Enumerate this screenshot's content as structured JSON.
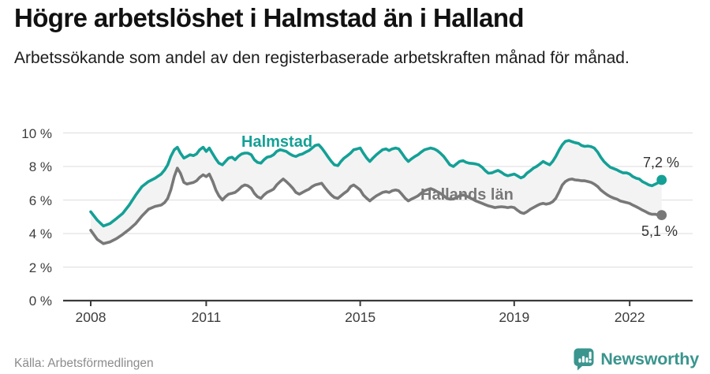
{
  "header": {
    "title": "Högre arbetslöshet i Halmstad än i Halland",
    "subtitle": "Arbetssökande som andel av den registerbaserade arbetskraften månad för månad."
  },
  "footer": {
    "source": "Källa: Arbetsförmedlingen",
    "brand": "Newsworthy"
  },
  "colors": {
    "halmstad": "#14A096",
    "halland": "#787878",
    "grid": "#DDDDDD",
    "axis": "#3A3A3A",
    "fill_between": "#F3F3F3",
    "logo": "#3A958E",
    "label_text": "#333333"
  },
  "chart_data": {
    "type": "line",
    "title": "Högre arbetslöshet i Halmstad än i Halland",
    "subtitle": "Arbetssökande som andel av den registerbaserade arbetskraften månad för månad.",
    "xlabel": "",
    "ylabel": "",
    "grid": true,
    "fill_between_series": true,
    "ylim": [
      0,
      10.6
    ],
    "xlim": [
      2007.3,
      2023.2
    ],
    "y_ticks": [
      {
        "v": 0,
        "label": "0 %"
      },
      {
        "v": 2,
        "label": "2 %"
      },
      {
        "v": 4,
        "label": "4 %"
      },
      {
        "v": 6,
        "label": "6 %"
      },
      {
        "v": 8,
        "label": "8 %"
      },
      {
        "v": 10,
        "label": "10 %"
      }
    ],
    "x_ticks": [
      {
        "v": 2008,
        "label": "2008"
      },
      {
        "v": 2011,
        "label": "2011"
      },
      {
        "v": 2015,
        "label": "2015"
      },
      {
        "v": 2019,
        "label": "2019"
      },
      {
        "v": 2022,
        "label": "2022"
      }
    ],
    "x": [
      2008.0,
      2008.17,
      2008.33,
      2008.5,
      2008.67,
      2008.83,
      2009.0,
      2009.17,
      2009.33,
      2009.5,
      2009.67,
      2009.83,
      2009.92,
      2010.0,
      2010.08,
      2010.17,
      2010.25,
      2010.33,
      2010.42,
      2010.5,
      2010.58,
      2010.67,
      2010.75,
      2010.83,
      2010.92,
      2011.0,
      2011.08,
      2011.17,
      2011.25,
      2011.33,
      2011.42,
      2011.5,
      2011.58,
      2011.67,
      2011.75,
      2011.83,
      2011.92,
      2012.0,
      2012.08,
      2012.17,
      2012.25,
      2012.33,
      2012.42,
      2012.5,
      2012.58,
      2012.67,
      2012.75,
      2012.83,
      2012.92,
      2013.0,
      2013.08,
      2013.17,
      2013.25,
      2013.33,
      2013.42,
      2013.5,
      2013.58,
      2013.67,
      2013.75,
      2013.83,
      2013.92,
      2014.0,
      2014.08,
      2014.17,
      2014.25,
      2014.33,
      2014.42,
      2014.5,
      2014.58,
      2014.67,
      2014.75,
      2014.83,
      2014.92,
      2015.0,
      2015.08,
      2015.17,
      2015.25,
      2015.33,
      2015.42,
      2015.5,
      2015.58,
      2015.67,
      2015.75,
      2015.83,
      2015.92,
      2016.0,
      2016.08,
      2016.17,
      2016.25,
      2016.33,
      2016.42,
      2016.5,
      2016.58,
      2016.67,
      2016.75,
      2016.83,
      2016.92,
      2017.0,
      2017.08,
      2017.17,
      2017.25,
      2017.33,
      2017.42,
      2017.5,
      2017.58,
      2017.67,
      2017.75,
      2017.83,
      2017.92,
      2018.0,
      2018.08,
      2018.17,
      2018.25,
      2018.33,
      2018.42,
      2018.5,
      2018.58,
      2018.67,
      2018.75,
      2018.83,
      2018.92,
      2019.0,
      2019.08,
      2019.17,
      2019.25,
      2019.33,
      2019.42,
      2019.5,
      2019.58,
      2019.67,
      2019.75,
      2019.83,
      2019.92,
      2020.0,
      2020.08,
      2020.17,
      2020.25,
      2020.33,
      2020.42,
      2020.5,
      2020.58,
      2020.67,
      2020.75,
      2020.83,
      2020.92,
      2021.0,
      2021.08,
      2021.17,
      2021.25,
      2021.33,
      2021.42,
      2021.5,
      2021.58,
      2021.67,
      2021.75,
      2021.83,
      2021.92,
      2022.0,
      2022.08,
      2022.17,
      2022.25,
      2022.33,
      2022.42,
      2022.5,
      2022.58,
      2022.67,
      2022.75,
      2022.83
    ],
    "series": [
      {
        "name": "Halmstad",
        "color": "#14A096",
        "end_label": "7,2 %",
        "end_value": 7.2,
        "values": [
          5.3,
          4.8,
          4.45,
          4.6,
          4.9,
          5.2,
          5.7,
          6.3,
          6.8,
          7.1,
          7.3,
          7.55,
          7.8,
          8.1,
          8.6,
          9.0,
          9.15,
          8.8,
          8.5,
          8.6,
          8.7,
          8.65,
          8.75,
          9.0,
          9.15,
          8.9,
          9.1,
          8.75,
          8.45,
          8.2,
          8.1,
          8.3,
          8.5,
          8.55,
          8.4,
          8.6,
          8.75,
          8.8,
          8.8,
          8.7,
          8.4,
          8.25,
          8.2,
          8.4,
          8.55,
          8.6,
          8.7,
          8.9,
          9.0,
          8.95,
          8.9,
          8.75,
          8.65,
          8.6,
          8.7,
          8.75,
          8.85,
          8.95,
          9.1,
          9.25,
          9.3,
          9.1,
          8.85,
          8.55,
          8.3,
          8.1,
          8.05,
          8.3,
          8.5,
          8.65,
          8.8,
          9.0,
          9.05,
          9.1,
          8.8,
          8.5,
          8.3,
          8.5,
          8.7,
          8.85,
          9.0,
          9.05,
          8.95,
          9.05,
          9.1,
          9.05,
          8.8,
          8.5,
          8.3,
          8.45,
          8.6,
          8.7,
          8.85,
          9.0,
          9.05,
          9.1,
          9.05,
          8.95,
          8.8,
          8.6,
          8.35,
          8.1,
          8.0,
          8.15,
          8.3,
          8.35,
          8.25,
          8.2,
          8.18,
          8.15,
          8.1,
          7.95,
          7.75,
          7.6,
          7.62,
          7.7,
          7.77,
          7.65,
          7.52,
          7.45,
          7.5,
          7.55,
          7.45,
          7.32,
          7.4,
          7.6,
          7.75,
          7.9,
          8.0,
          8.15,
          8.3,
          8.2,
          8.1,
          8.3,
          8.6,
          9.0,
          9.3,
          9.5,
          9.55,
          9.48,
          9.42,
          9.38,
          9.25,
          9.2,
          9.22,
          9.18,
          9.1,
          8.85,
          8.55,
          8.3,
          8.1,
          7.95,
          7.88,
          7.8,
          7.7,
          7.62,
          7.62,
          7.55,
          7.4,
          7.3,
          7.25,
          7.1,
          7.0,
          6.9,
          6.85,
          6.95,
          7.05,
          7.2
        ]
      },
      {
        "name": "Hallands län",
        "color": "#787878",
        "end_label": "5,1 %",
        "end_value": 5.1,
        "values": [
          4.2,
          3.65,
          3.4,
          3.5,
          3.7,
          3.95,
          4.25,
          4.6,
          5.05,
          5.45,
          5.62,
          5.7,
          5.85,
          6.1,
          6.6,
          7.4,
          7.9,
          7.6,
          7.05,
          6.95,
          7.0,
          7.05,
          7.15,
          7.35,
          7.5,
          7.4,
          7.55,
          7.1,
          6.6,
          6.25,
          6.0,
          6.2,
          6.35,
          6.4,
          6.45,
          6.6,
          6.8,
          6.9,
          6.85,
          6.7,
          6.4,
          6.2,
          6.1,
          6.3,
          6.45,
          6.55,
          6.65,
          6.9,
          7.1,
          7.25,
          7.1,
          6.9,
          6.7,
          6.45,
          6.35,
          6.45,
          6.55,
          6.65,
          6.8,
          6.9,
          6.95,
          7.0,
          6.75,
          6.5,
          6.3,
          6.15,
          6.1,
          6.25,
          6.4,
          6.55,
          6.8,
          6.9,
          6.75,
          6.6,
          6.3,
          6.1,
          5.95,
          6.1,
          6.25,
          6.35,
          6.45,
          6.5,
          6.45,
          6.55,
          6.6,
          6.55,
          6.35,
          6.1,
          5.95,
          6.05,
          6.15,
          6.25,
          6.4,
          6.55,
          6.62,
          6.68,
          6.6,
          6.5,
          6.4,
          6.25,
          6.1,
          6.05,
          6.06,
          6.15,
          6.25,
          6.3,
          6.25,
          6.15,
          6.05,
          5.95,
          5.88,
          5.8,
          5.72,
          5.65,
          5.6,
          5.55,
          5.58,
          5.6,
          5.58,
          5.55,
          5.58,
          5.55,
          5.4,
          5.25,
          5.2,
          5.3,
          5.45,
          5.55,
          5.65,
          5.75,
          5.8,
          5.75,
          5.8,
          5.9,
          6.1,
          6.5,
          6.9,
          7.1,
          7.22,
          7.25,
          7.2,
          7.18,
          7.15,
          7.15,
          7.1,
          7.05,
          6.95,
          6.8,
          6.6,
          6.45,
          6.3,
          6.2,
          6.12,
          6.05,
          5.95,
          5.9,
          5.85,
          5.8,
          5.7,
          5.6,
          5.5,
          5.4,
          5.3,
          5.2,
          5.15,
          5.15,
          5.1,
          5.1
        ]
      }
    ]
  }
}
